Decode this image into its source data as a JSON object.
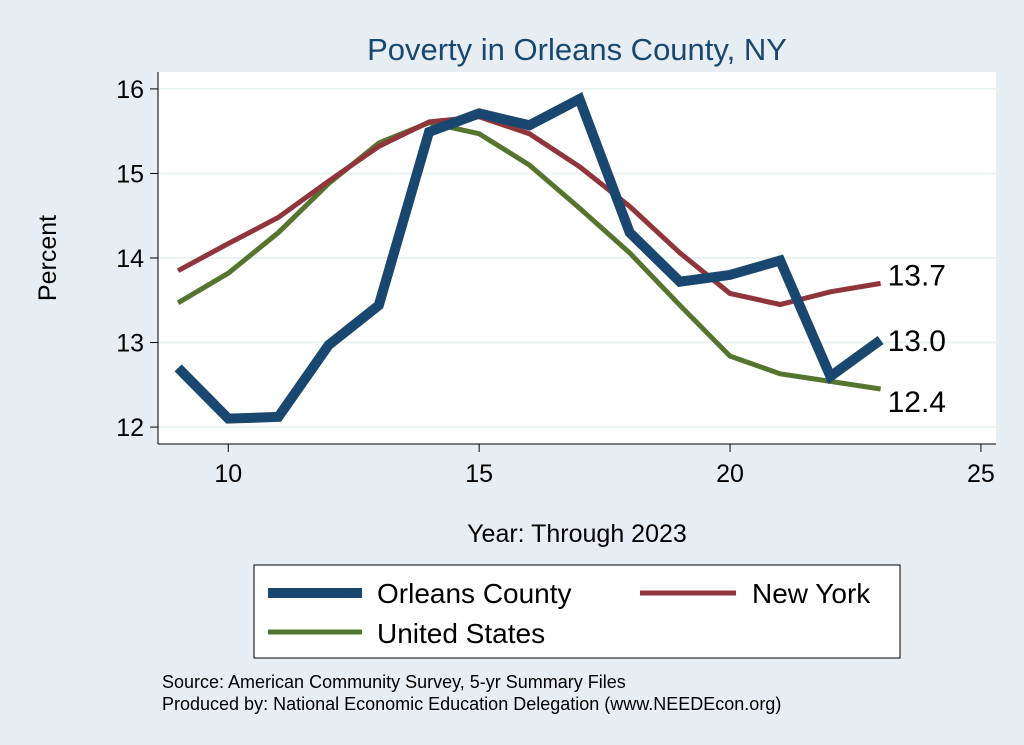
{
  "chart_data": {
    "type": "line",
    "title": "Poverty in Orleans County, NY",
    "xlabel": "Year: Through 2023",
    "ylabel": "Percent",
    "xlim": [
      8.6,
      25.3
    ],
    "ylim": [
      11.8,
      16.2
    ],
    "xticks": [
      10,
      15,
      20,
      25
    ],
    "yticks": [
      12,
      13,
      14,
      15,
      16
    ],
    "grid": "horizontal",
    "x": [
      9,
      10,
      11,
      12,
      13,
      14,
      15,
      16,
      17,
      18,
      19,
      20,
      21,
      22,
      23
    ],
    "series": [
      {
        "name": "Orleans County",
        "color": "#1a476f",
        "values": [
          12.7,
          12.1,
          12.12,
          12.97,
          13.44,
          15.49,
          15.71,
          15.57,
          15.88,
          14.3,
          13.72,
          13.8,
          13.97,
          12.6,
          13.03
        ],
        "end_label": "13.0"
      },
      {
        "name": "New York",
        "color": "#90353b",
        "values": [
          13.85,
          14.17,
          14.48,
          14.91,
          15.32,
          15.61,
          15.67,
          15.47,
          15.08,
          14.61,
          14.06,
          13.58,
          13.45,
          13.6,
          13.7
        ],
        "end_label": "13.7"
      },
      {
        "name": "United States",
        "color": "#55752f",
        "values": [
          13.47,
          13.82,
          14.3,
          14.88,
          15.36,
          15.6,
          15.47,
          15.1,
          14.59,
          14.06,
          13.44,
          12.84,
          12.63,
          12.54,
          12.45
        ],
        "end_label": "12.4"
      }
    ],
    "legend_position": "bottom",
    "notes": [
      "Source: American Community Survey, 5-yr Summary Files",
      "Produced by: National Economic Education Delegation (www.NEEDEcon.org)"
    ]
  },
  "colors": {
    "background": "#e7eef3",
    "plot_background": "#ffffff",
    "title": "#1a476f",
    "grid": "#eaf2f3"
  }
}
